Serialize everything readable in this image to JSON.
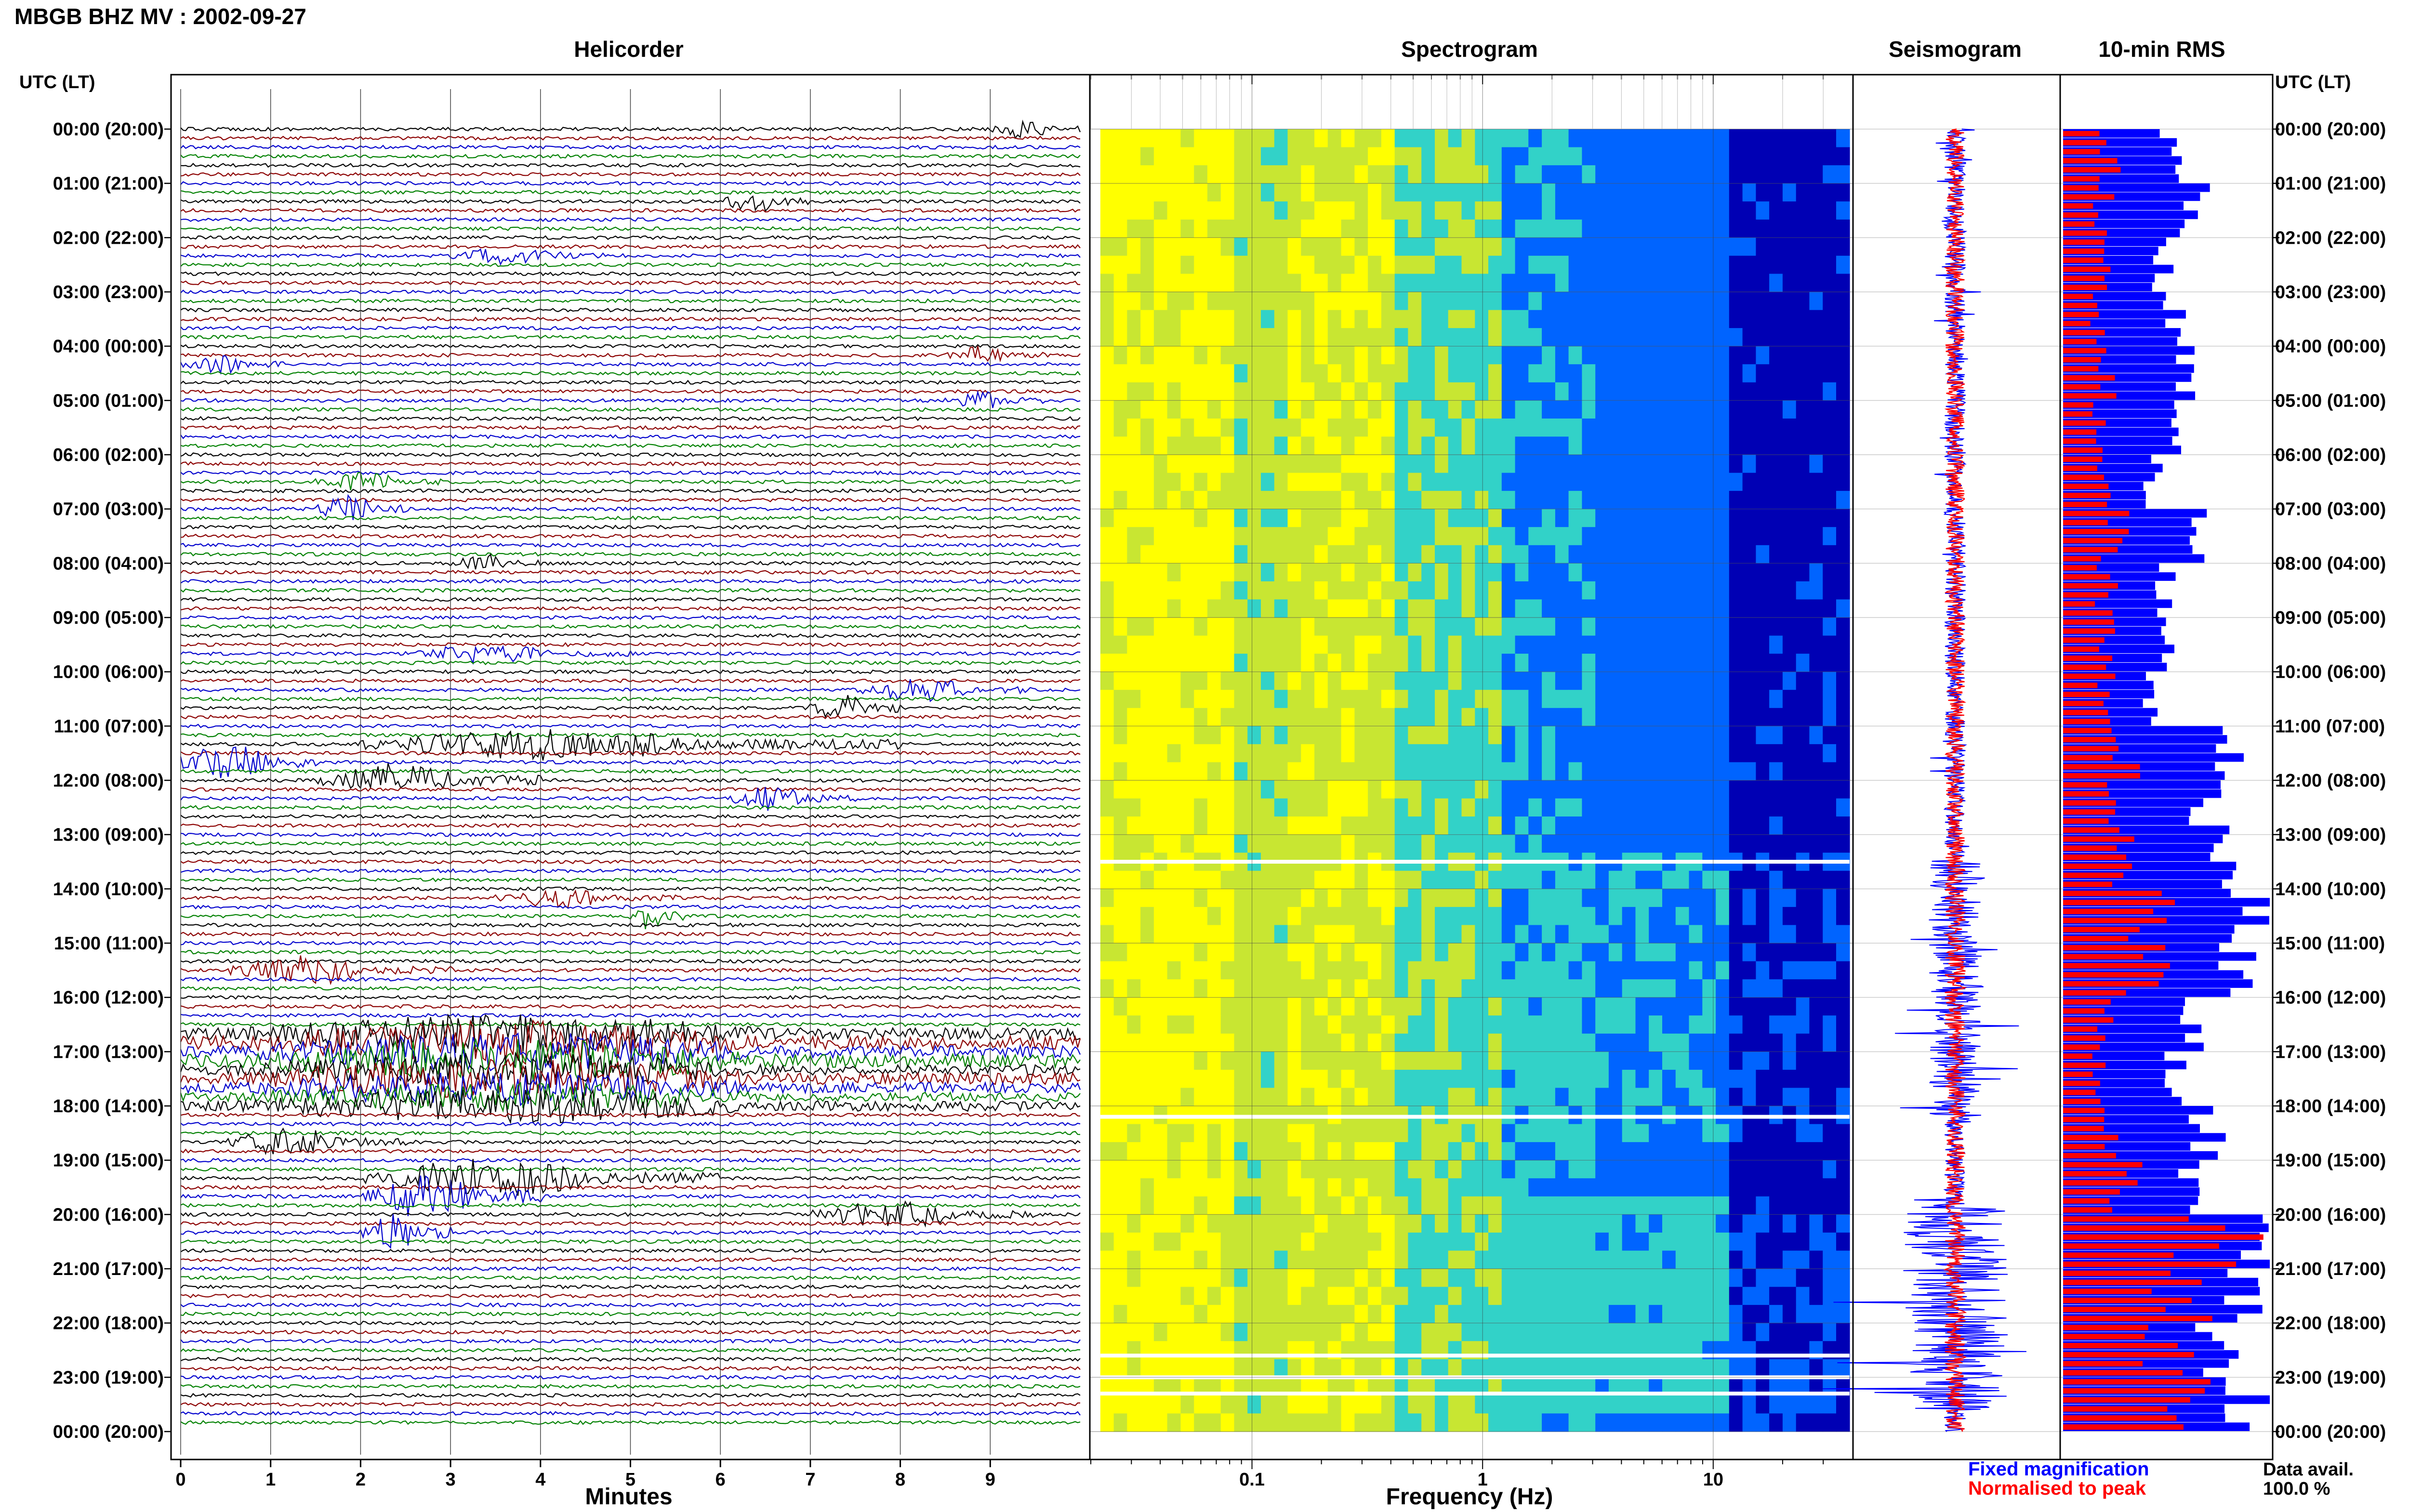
{
  "header": {
    "title": "MBGB BHZ MV : 2002-09-27"
  },
  "panels": {
    "helicorder_title": "Helicorder",
    "spectrogram_title": "Spectrogram",
    "seismogram_title": "Seismogram",
    "rms_title": "10-min RMS"
  },
  "time_axis": {
    "label_left": "UTC (LT)",
    "label_right": "UTC (LT)",
    "ticks": [
      "00:00 (20:00)",
      "01:00 (21:00)",
      "02:00 (22:00)",
      "03:00 (23:00)",
      "04:00 (00:00)",
      "05:00 (01:00)",
      "06:00 (02:00)",
      "07:00 (03:00)",
      "08:00 (04:00)",
      "09:00 (05:00)",
      "10:00 (06:00)",
      "11:00 (07:00)",
      "12:00 (08:00)",
      "13:00 (09:00)",
      "14:00 (10:00)",
      "15:00 (11:00)",
      "16:00 (12:00)",
      "17:00 (13:00)",
      "18:00 (14:00)",
      "19:00 (15:00)",
      "20:00 (16:00)",
      "21:00 (17:00)",
      "22:00 (18:00)",
      "23:00 (19:00)",
      "00:00 (20:00)"
    ]
  },
  "helicorder_axis": {
    "xlabel": "Minutes",
    "ticks": [
      "0",
      "1",
      "2",
      "3",
      "4",
      "5",
      "6",
      "7",
      "8",
      "9"
    ]
  },
  "spectrogram_axis": {
    "xlabel": "Frequency (Hz)",
    "ticks": [
      "0.1",
      "1",
      "10"
    ]
  },
  "legend": {
    "fixed": "Fixed magnification",
    "normalised": "Normalised to peak"
  },
  "data_availability": {
    "label": "Data avail.",
    "value": "100.0 %"
  },
  "colors": {
    "trace_cycle": [
      "#000000",
      "#8b0000",
      "#0000cd",
      "#008000"
    ],
    "fixed": "#0000ff",
    "normalised": "#ff0000"
  },
  "chart_data": [
    {
      "type": "line",
      "name": "helicorder",
      "xlabel": "Minutes",
      "xlim": [
        0,
        10
      ],
      "rows": 144,
      "row_minutes": 10,
      "event_rows": [
        {
          "row": 0,
          "start": 9.0,
          "end": 10.0,
          "amp": 2.2
        },
        {
          "row": 8,
          "start": 6.0,
          "end": 7.0,
          "amp": 2.5
        },
        {
          "row": 14,
          "start": 3.0,
          "end": 5.0,
          "amp": 2.0
        },
        {
          "row": 25,
          "start": 8.5,
          "end": 9.6,
          "amp": 2.0
        },
        {
          "row": 26,
          "start": 0.0,
          "end": 1.2,
          "amp": 2.0
        },
        {
          "row": 30,
          "start": 8.5,
          "end": 9.6,
          "amp": 2.0
        },
        {
          "row": 39,
          "start": 1.5,
          "end": 3.0,
          "amp": 2.0
        },
        {
          "row": 42,
          "start": 1.5,
          "end": 2.5,
          "amp": 3.0
        },
        {
          "row": 48,
          "start": 3.0,
          "end": 4.0,
          "amp": 2.0
        },
        {
          "row": 58,
          "start": 2.5,
          "end": 5.0,
          "amp": 2.0
        },
        {
          "row": 62,
          "start": 7.5,
          "end": 9.5,
          "amp": 2.5
        },
        {
          "row": 64,
          "start": 7.0,
          "end": 8.0,
          "amp": 3.0
        },
        {
          "row": 68,
          "start": 2.0,
          "end": 8.0,
          "amp": 3.5
        },
        {
          "row": 70,
          "start": 0.0,
          "end": 1.5,
          "amp": 4.0
        },
        {
          "row": 72,
          "start": 1.5,
          "end": 4.0,
          "amp": 3.5
        },
        {
          "row": 74,
          "start": 6.0,
          "end": 7.5,
          "amp": 2.5
        },
        {
          "row": 85,
          "start": 3.5,
          "end": 5.5,
          "amp": 2.0
        },
        {
          "row": 87,
          "start": 5.0,
          "end": 5.6,
          "amp": 3.0
        },
        {
          "row": 93,
          "start": 0.5,
          "end": 3.0,
          "amp": 3.0
        },
        {
          "row": 100,
          "start": 0.0,
          "end": 10.0,
          "amp": 4.0
        },
        {
          "row": 101,
          "start": 0.0,
          "end": 10.0,
          "amp": 4.5
        },
        {
          "row": 102,
          "start": 0.0,
          "end": 10.0,
          "amp": 4.0
        },
        {
          "row": 103,
          "start": 0.0,
          "end": 10.0,
          "amp": 4.5
        },
        {
          "row": 104,
          "start": 0.0,
          "end": 10.0,
          "amp": 3.5
        },
        {
          "row": 105,
          "start": 0.0,
          "end": 10.0,
          "amp": 4.0
        },
        {
          "row": 106,
          "start": 0.0,
          "end": 10.0,
          "amp": 3.5
        },
        {
          "row": 107,
          "start": 0.0,
          "end": 10.0,
          "amp": 3.0
        },
        {
          "row": 108,
          "start": 0.0,
          "end": 10.0,
          "amp": 3.5
        },
        {
          "row": 112,
          "start": 0.5,
          "end": 2.5,
          "amp": 3.0
        },
        {
          "row": 116,
          "start": 2.0,
          "end": 6.0,
          "amp": 4.0
        },
        {
          "row": 118,
          "start": 2.0,
          "end": 4.0,
          "amp": 4.5
        },
        {
          "row": 120,
          "start": 7.0,
          "end": 9.5,
          "amp": 3.0
        },
        {
          "row": 122,
          "start": 2.0,
          "end": 3.0,
          "amp": 4.0
        }
      ]
    },
    {
      "type": "heatmap",
      "name": "spectrogram",
      "xlabel": "Frequency (Hz)",
      "xscale": "log",
      "xlim": [
        0.02,
        40
      ],
      "ylim_hours": [
        0,
        24
      ],
      "colormap": [
        "#ffff00",
        "#c8e632",
        "#32d2c8",
        "#0064ff",
        "#0000b4"
      ],
      "gap_hours": [
        13.5,
        18.2,
        22.6,
        23.0,
        23.3
      ]
    },
    {
      "type": "line",
      "name": "seismogram",
      "ylim_hours": [
        0,
        24
      ],
      "series": [
        {
          "name": "Fixed magnification",
          "color": "#0000ff"
        },
        {
          "name": "Normalised to peak",
          "color": "#ff0000"
        }
      ]
    },
    {
      "type": "bar",
      "name": "10-min RMS",
      "orientation": "horizontal",
      "ylim_hours": [
        0,
        24
      ],
      "rows": 144,
      "series": [
        {
          "name": "Fixed magnification",
          "color": "#0000ff"
        },
        {
          "name": "Normalised to peak",
          "color": "#ff0000"
        }
      ],
      "fixed_hourly": [
        0.55,
        0.62,
        0.5,
        0.52,
        0.6,
        0.5,
        0.45,
        0.62,
        0.48,
        0.5,
        0.45,
        0.85,
        0.7,
        0.75,
        0.95,
        0.85,
        0.6,
        0.55,
        0.7,
        0.6,
        1.0,
        0.85,
        0.75,
        0.9
      ],
      "normalised_hourly": [
        0.22,
        0.2,
        0.18,
        0.18,
        0.2,
        0.17,
        0.18,
        0.25,
        0.22,
        0.2,
        0.2,
        0.3,
        0.25,
        0.28,
        0.45,
        0.4,
        0.22,
        0.2,
        0.25,
        0.3,
        0.75,
        0.6,
        0.5,
        0.6
      ]
    }
  ]
}
